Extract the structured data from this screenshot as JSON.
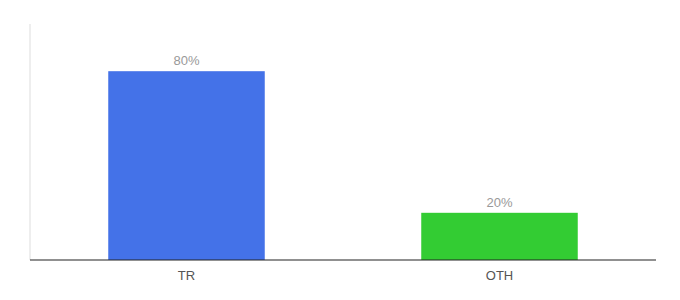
{
  "chart_data": {
    "type": "bar",
    "categories": [
      "TR",
      "OTH"
    ],
    "values": [
      80,
      20
    ],
    "value_labels": [
      "80%",
      "20%"
    ],
    "colors": [
      "#4472e8",
      "#33cc33"
    ],
    "ylim": [
      0,
      100
    ],
    "yticks": [],
    "grid": false,
    "data_labels": true,
    "tick_labels": "x"
  }
}
